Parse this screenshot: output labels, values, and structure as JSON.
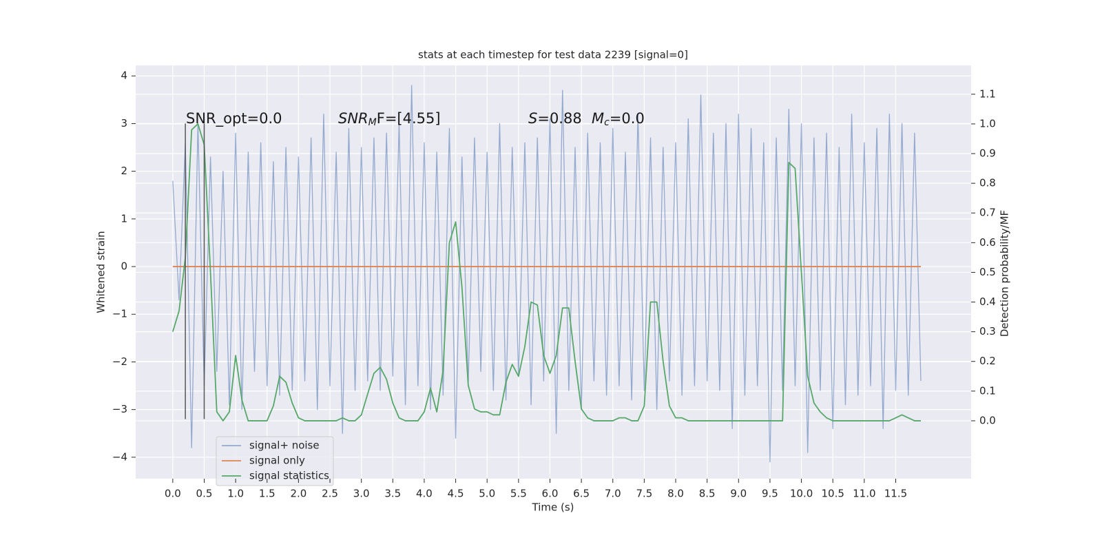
{
  "chart_data": {
    "type": "line",
    "title": "stats at each timestep for test data 2239 [signal=0]",
    "xlabel": "Time (s)",
    "ylabel": "Whitened strain",
    "y2label": "Detection probability/MF",
    "grid": true,
    "legend": "lower left",
    "xlim": [
      -0.59,
      12.7
    ],
    "ylim": [
      -4.45,
      4.22
    ],
    "y2lim": [
      -0.195,
      1.197
    ],
    "xticks": [
      {
        "value": 0,
        "label": "0.0"
      },
      0.5,
      {
        "value": 1,
        "label": "1.0"
      },
      1.5,
      {
        "value": 2,
        "label": "2.0"
      },
      2.5,
      {
        "value": 3,
        "label": "3.0"
      },
      3.5,
      {
        "value": 4,
        "label": "4.0"
      },
      4.5,
      {
        "value": 5,
        "label": "5.0"
      },
      5.5,
      {
        "value": 6,
        "label": "6.0"
      },
      6.5,
      {
        "value": 7,
        "label": "7.0"
      },
      7.5,
      {
        "value": 8,
        "label": "8.0"
      },
      8.5,
      {
        "value": 9,
        "label": "9.0"
      },
      9.5,
      {
        "value": 10,
        "label": "10.0"
      },
      10.5,
      {
        "value": 11,
        "label": "11.0"
      },
      11.5
    ],
    "yticks": [
      {
        "value": -4,
        "label": "−4"
      },
      {
        "value": -3,
        "label": "−3"
      },
      {
        "value": -2,
        "label": "−2"
      },
      {
        "value": -1,
        "label": "−1"
      },
      0,
      1,
      2,
      3,
      4
    ],
    "y2ticks": [
      {
        "value": 0,
        "label": "0.0"
      },
      0.1,
      0.2,
      0.3,
      0.4,
      0.5,
      0.6,
      0.7,
      0.8,
      0.9,
      {
        "value": 1,
        "label": "1.0"
      },
      1.1
    ],
    "x": [
      0,
      0.1,
      0.2,
      0.3,
      0.4,
      0.5,
      0.6,
      0.7,
      0.8,
      0.9,
      1,
      1.1,
      1.2,
      1.3,
      1.4,
      1.5,
      1.6,
      1.7,
      1.8,
      1.9,
      2,
      2.1,
      2.2,
      2.3,
      2.4,
      2.5,
      2.6,
      2.7,
      2.8,
      2.9,
      3,
      3.1,
      3.2,
      3.3,
      3.4,
      3.5,
      3.6,
      3.7,
      3.8,
      3.9,
      4,
      4.1,
      4.2,
      4.3,
      4.4,
      4.5,
      4.6,
      4.7,
      4.8,
      4.9,
      5,
      5.1,
      5.2,
      5.3,
      5.4,
      5.5,
      5.6,
      5.7,
      5.8,
      5.9,
      6,
      6.1,
      6.2,
      6.3,
      6.4,
      6.5,
      6.6,
      6.7,
      6.8,
      6.9,
      7,
      7.1,
      7.2,
      7.3,
      7.4,
      7.5,
      7.6,
      7.7,
      7.8,
      7.9,
      8,
      8.1,
      8.2,
      8.3,
      8.4,
      8.5,
      8.6,
      8.7,
      8.8,
      8.9,
      9,
      9.1,
      9.2,
      9.3,
      9.4,
      9.5,
      9.6,
      9.7,
      9.8,
      9.9,
      10,
      10.1,
      10.2,
      10.3,
      10.4,
      10.5,
      10.6,
      10.7,
      10.8,
      10.9,
      11,
      11.1,
      11.2,
      11.3,
      11.4,
      11.5,
      11.6,
      11.7,
      11.8,
      11.9
    ],
    "series": [
      {
        "name": "signal+ noise",
        "color": "#4c72b0",
        "axis": "y",
        "values": [
          1.8,
          -0.7,
          2.6,
          -3.8,
          3.0,
          -2.5,
          2.3,
          -2.2,
          2.0,
          -2.9,
          2.8,
          -3.0,
          2.4,
          -2.2,
          2.6,
          -2.5,
          2.2,
          -2.7,
          2.5,
          -2.6,
          2.3,
          -2.4,
          2.7,
          -3.0,
          3.2,
          -2.5,
          2.4,
          -3.5,
          2.9,
          -2.6,
          2.5,
          -2.4,
          2.7,
          -2.6,
          2.8,
          -2.3,
          3.0,
          -2.9,
          3.8,
          -2.5,
          2.6,
          -3.0,
          2.4,
          -2.7,
          2.9,
          -3.6,
          2.3,
          -2.5,
          2.7,
          -2.2,
          2.4,
          -2.6,
          3.0,
          -2.8,
          2.5,
          -2.3,
          2.6,
          -2.9,
          2.7,
          -2.4,
          3.1,
          -3.5,
          3.7,
          -2.6,
          2.5,
          -3.0,
          2.8,
          -2.4,
          2.6,
          -2.7,
          2.9,
          -2.5,
          2.4,
          -2.8,
          3.2,
          -2.6,
          2.7,
          -3.0,
          2.5,
          -2.4,
          2.6,
          -2.7,
          3.1,
          -2.5,
          3.6,
          -2.4,
          2.8,
          -2.6,
          3.0,
          -3.4,
          3.2,
          -2.7,
          2.9,
          -2.5,
          2.6,
          -4.1,
          2.7,
          -2.6,
          3.3,
          -2.5,
          3.0,
          -3.9,
          2.7,
          -2.6,
          2.8,
          -3.4,
          2.5,
          -2.9,
          3.2,
          -2.7,
          2.6,
          -2.5,
          2.9,
          -3.4,
          3.2,
          -2.6,
          3.0,
          -2.7,
          2.8,
          -2.4
        ]
      },
      {
        "name": "signal only",
        "color": "#dd8452",
        "axis": "y",
        "x": [
          0,
          11.9
        ],
        "values": [
          0,
          0
        ]
      },
      {
        "name": "signal statistics",
        "color": "#55a868",
        "axis": "y2",
        "values": [
          0.3,
          0.37,
          0.55,
          0.98,
          1,
          0.93,
          0.5,
          0.03,
          0,
          0.03,
          0.22,
          0.07,
          0,
          0,
          0,
          0,
          0.05,
          0.15,
          0.13,
          0.06,
          0.01,
          0,
          0,
          0,
          0,
          0,
          0,
          0.01,
          0,
          0,
          0.02,
          0.09,
          0.16,
          0.18,
          0.14,
          0.06,
          0.01,
          0,
          0,
          0,
          0.03,
          0.11,
          0.03,
          0.17,
          0.6,
          0.67,
          0.45,
          0.12,
          0.04,
          0.03,
          0.03,
          0.02,
          0.02,
          0.13,
          0.19,
          0.15,
          0.25,
          0.4,
          0.39,
          0.22,
          0.16,
          0.22,
          0.38,
          0.38,
          0.2,
          0.04,
          0.01,
          0,
          0,
          0,
          0,
          0.01,
          0.01,
          0,
          0,
          0.05,
          0.4,
          0.4,
          0.2,
          0.05,
          0.01,
          0.01,
          0,
          0,
          0,
          0,
          0,
          0,
          0,
          0,
          0,
          0,
          0,
          0,
          0,
          0,
          0,
          0,
          0.87,
          0.85,
          0.5,
          0.15,
          0.06,
          0.03,
          0.01,
          0,
          0,
          0,
          0,
          0,
          0,
          0,
          0,
          0,
          0,
          0.01,
          0.02,
          0.01,
          0,
          0
        ]
      }
    ],
    "vlines": {
      "x": [
        0.2,
        0.5
      ],
      "ymin": -3.2,
      "ymax": 3.0,
      "color": "#555555"
    },
    "annotations": [
      {
        "text": "SNR_opt=0.0"
      },
      {
        "italic": "SNR",
        "sub": "M",
        "text": "F=[4.55]"
      },
      {
        "italic": "S",
        "text": "=0.88"
      },
      {
        "italic": "M",
        "sub": "c",
        "text": "=0.0"
      }
    ]
  }
}
